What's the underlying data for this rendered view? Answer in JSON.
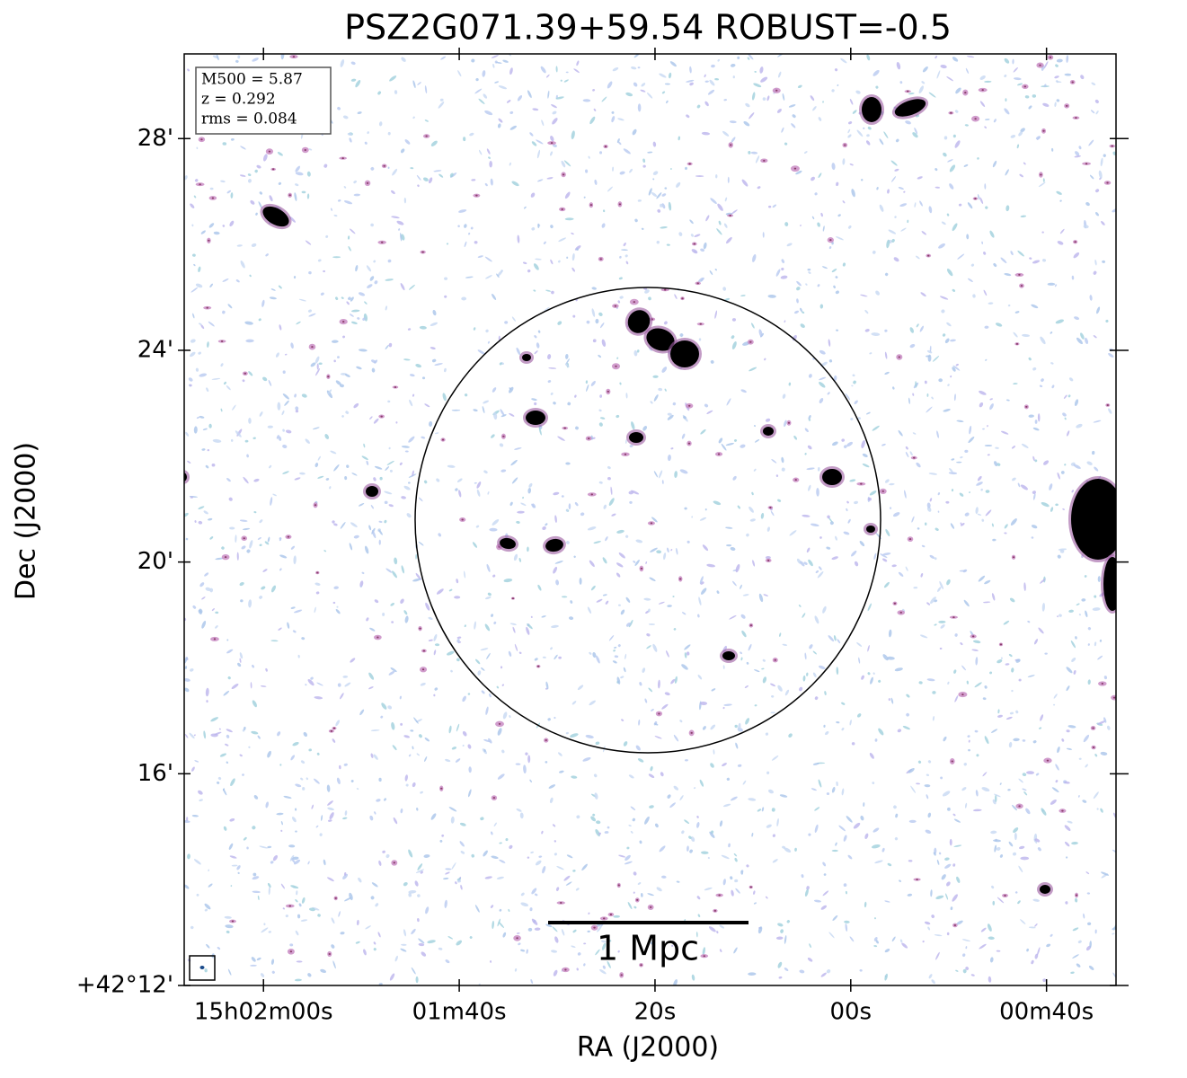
{
  "chart_data": {
    "type": "image",
    "title": "PSZ2G071.39+59.54 ROBUST=-0.5",
    "xlabel": "RA (J2000)",
    "ylabel": "Dec (J2000)",
    "xlim": [
      128.1,
      32.9
    ],
    "xticks": [
      {
        "value": 120,
        "label": "15h02m00s"
      },
      {
        "value": 100,
        "label": "01m40s"
      },
      {
        "value": 80,
        "label": "20s"
      },
      {
        "value": 60,
        "label": "00s"
      },
      {
        "value": 40,
        "label": "00m40s"
      }
    ],
    "ylim": [
      12,
      29.6
    ],
    "yticks": [
      {
        "value": 12,
        "label": "+42°12'"
      },
      {
        "value": 16,
        "label": "16'"
      },
      {
        "value": 20,
        "label": "20'"
      },
      {
        "value": 24,
        "label": "24'"
      },
      {
        "value": 28,
        "label": "28'"
      }
    ],
    "annotations": [
      "M500 = 5.87",
      "z = 0.292",
      "rms = 0.084"
    ],
    "scalebar_label": "1 Mpc"
  }
}
